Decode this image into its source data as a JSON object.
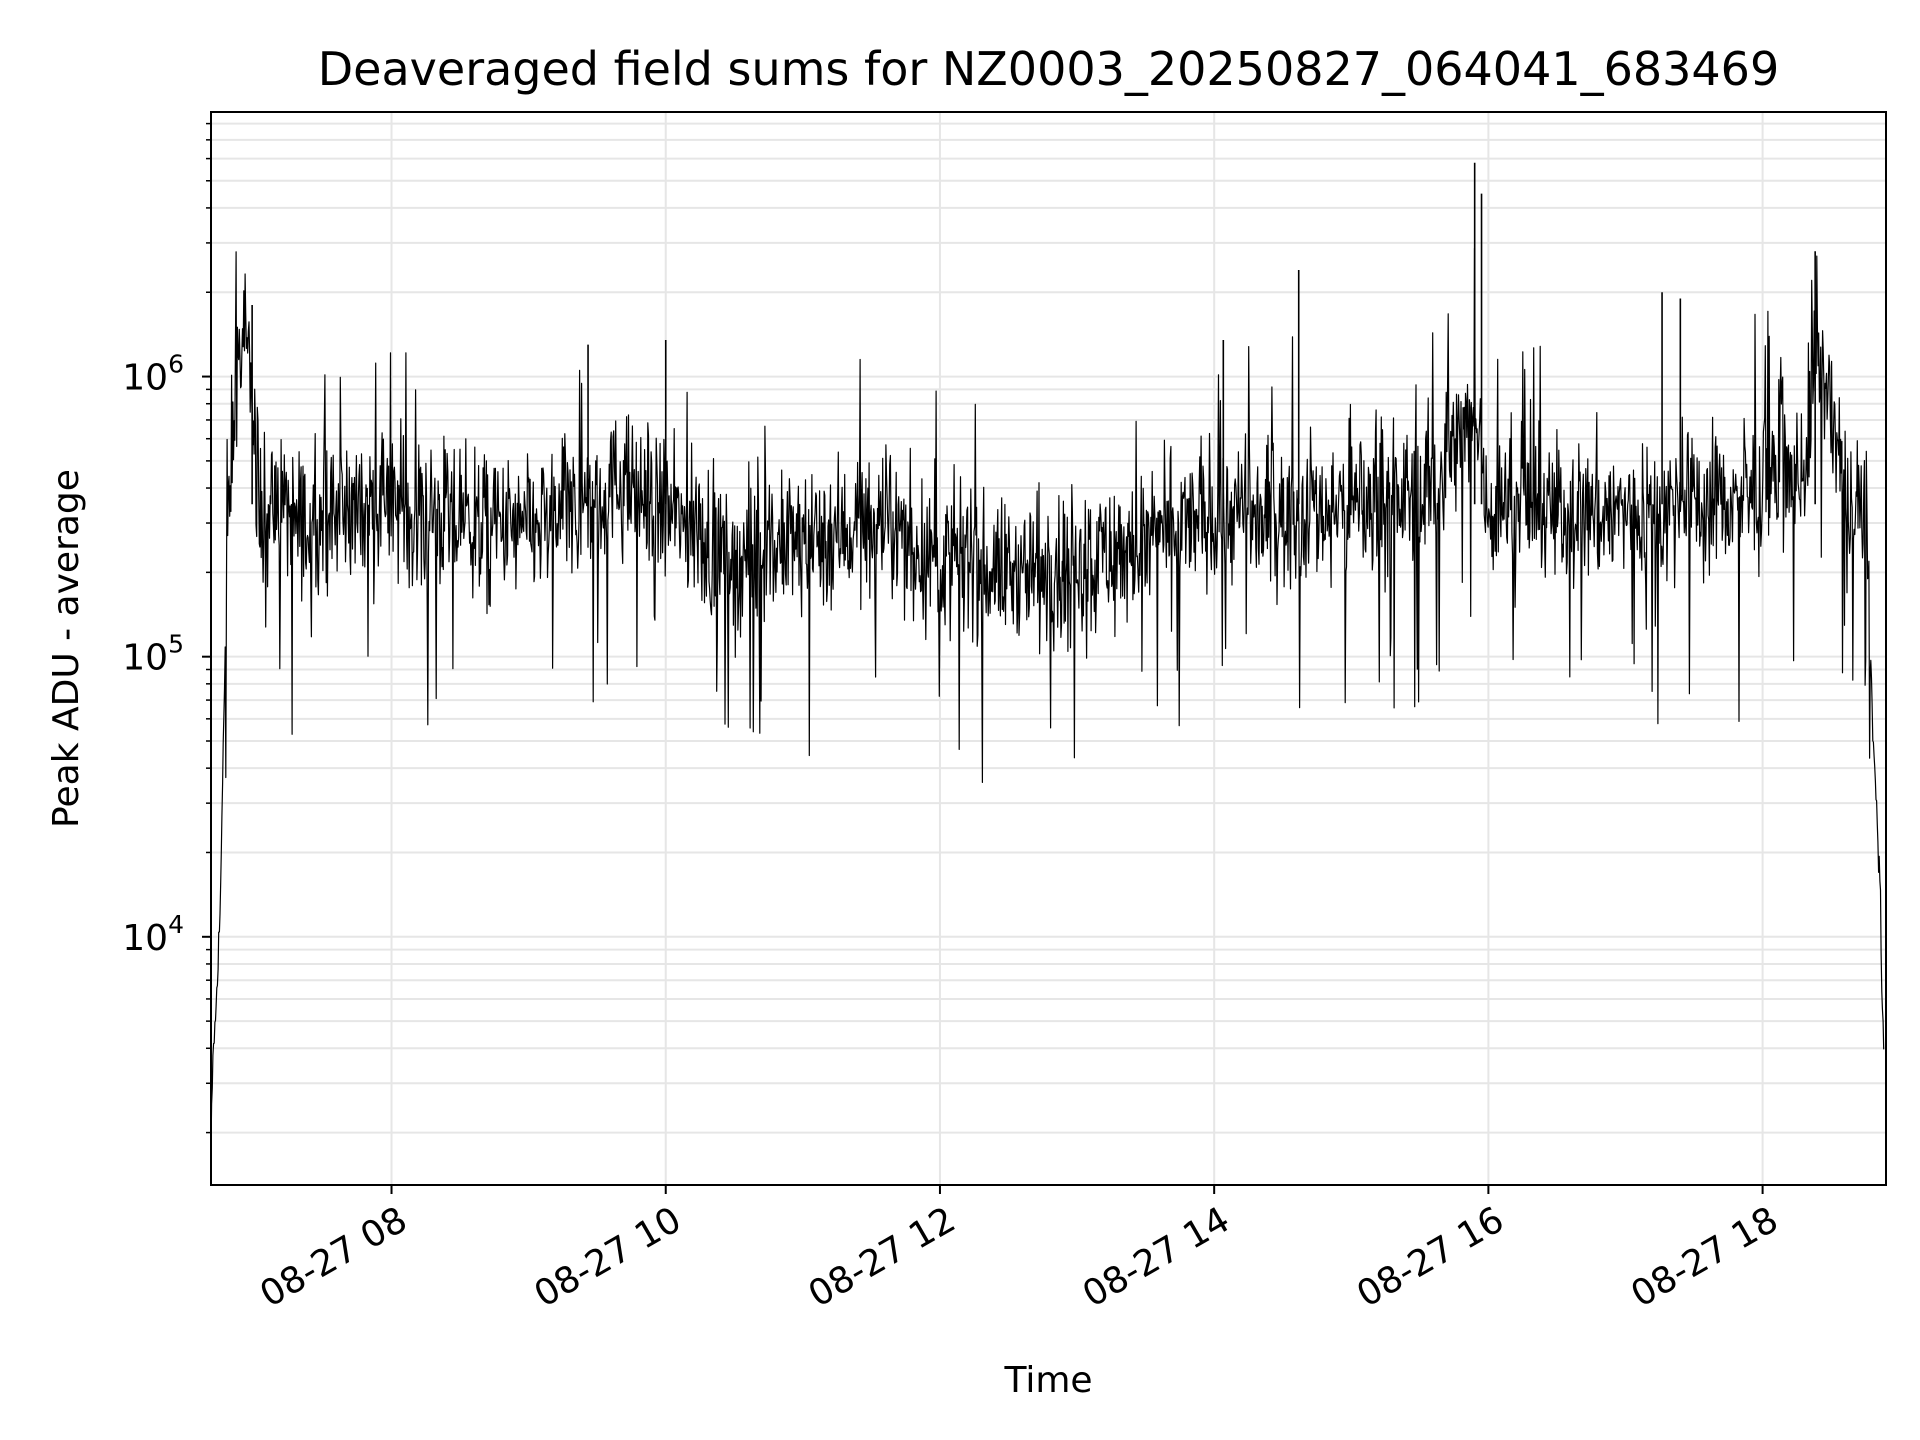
{
  "chart_data": {
    "type": "line",
    "title": "Deaveraged field sums for NZ0003_20250827_064041_683469",
    "xlabel": "Time",
    "ylabel": "Peak ADU - average",
    "yscale": "log",
    "grid": true,
    "legend": "none",
    "x_ticks": [
      "2025-08-27 08:00",
      "2025-08-27 10:00",
      "2025-08-27 12:00",
      "2025-08-27 14:00",
      "2025-08-27 16:00",
      "2025-08-27 18:00"
    ],
    "x_tick_labels": [
      "08-27 08",
      "08-27 10",
      "08-27 12",
      "08-27 14",
      "08-27 16",
      "08-27 18"
    ],
    "y_ticks": [
      10000,
      100000,
      1000000
    ],
    "y_tick_labels": [
      {
        "base": "10",
        "exp": "4"
      },
      {
        "base": "10",
        "exp": "5"
      },
      {
        "base": "10",
        "exp": "6"
      }
    ],
    "xlim": [
      "2025-08-27 06:41",
      "2025-08-27 18:54"
    ],
    "ylim": [
      1300,
      8800000
    ],
    "line_color": "#000000",
    "series": [
      {
        "x": [
          "2025-08-27 06:41",
          "2025-08-27 06:42",
          "2025-08-27 06:43",
          "2025-08-27 06:45",
          "2025-08-27 06:47",
          "2025-08-27 06:50",
          "2025-08-27 06:53",
          "2025-08-27 06:56",
          "2025-08-27 06:58",
          "2025-08-27 07:00",
          "2025-08-27 07:03",
          "2025-08-27 07:05",
          "2025-08-27 07:10",
          "2025-08-27 07:20",
          "2025-08-27 07:30",
          "2025-08-27 08:00",
          "2025-08-27 08:30",
          "2025-08-27 09:00",
          "2025-08-27 09:30",
          "2025-08-27 09:40",
          "2025-08-27 10:00",
          "2025-08-27 10:30",
          "2025-08-27 11:00",
          "2025-08-27 11:30",
          "2025-08-27 12:00",
          "2025-08-27 12:30",
          "2025-08-27 13:00",
          "2025-08-27 13:30",
          "2025-08-27 14:00",
          "2025-08-27 14:30",
          "2025-08-27 14:37",
          "2025-08-27 15:00",
          "2025-08-27 15:30",
          "2025-08-27 15:55",
          "2025-08-27 16:00",
          "2025-08-27 16:30",
          "2025-08-27 17:00",
          "2025-08-27 17:30",
          "2025-08-27 18:00",
          "2025-08-27 18:20",
          "2025-08-27 18:23",
          "2025-08-27 18:30",
          "2025-08-27 18:40",
          "2025-08-27 18:45",
          "2025-08-27 18:48",
          "2025-08-27 18:51",
          "2025-08-27 18:53"
        ],
        "values": [
          1700,
          4000,
          5000,
          12000,
          100000,
          600000,
          1100000,
          1300000,
          1000000,
          650000,
          300000,
          320000,
          350000,
          300000,
          330000,
          350000,
          300000,
          280000,
          350000,
          420000,
          330000,
          220000,
          260000,
          300000,
          220000,
          200000,
          220000,
          250000,
          330000,
          300000,
          330000,
          350000,
          380000,
          700000,
          350000,
          330000,
          330000,
          350000,
          380000,
          500000,
          1500000,
          700000,
          300000,
          400000,
          60000,
          20000,
          3500
        ]
      }
    ]
  }
}
